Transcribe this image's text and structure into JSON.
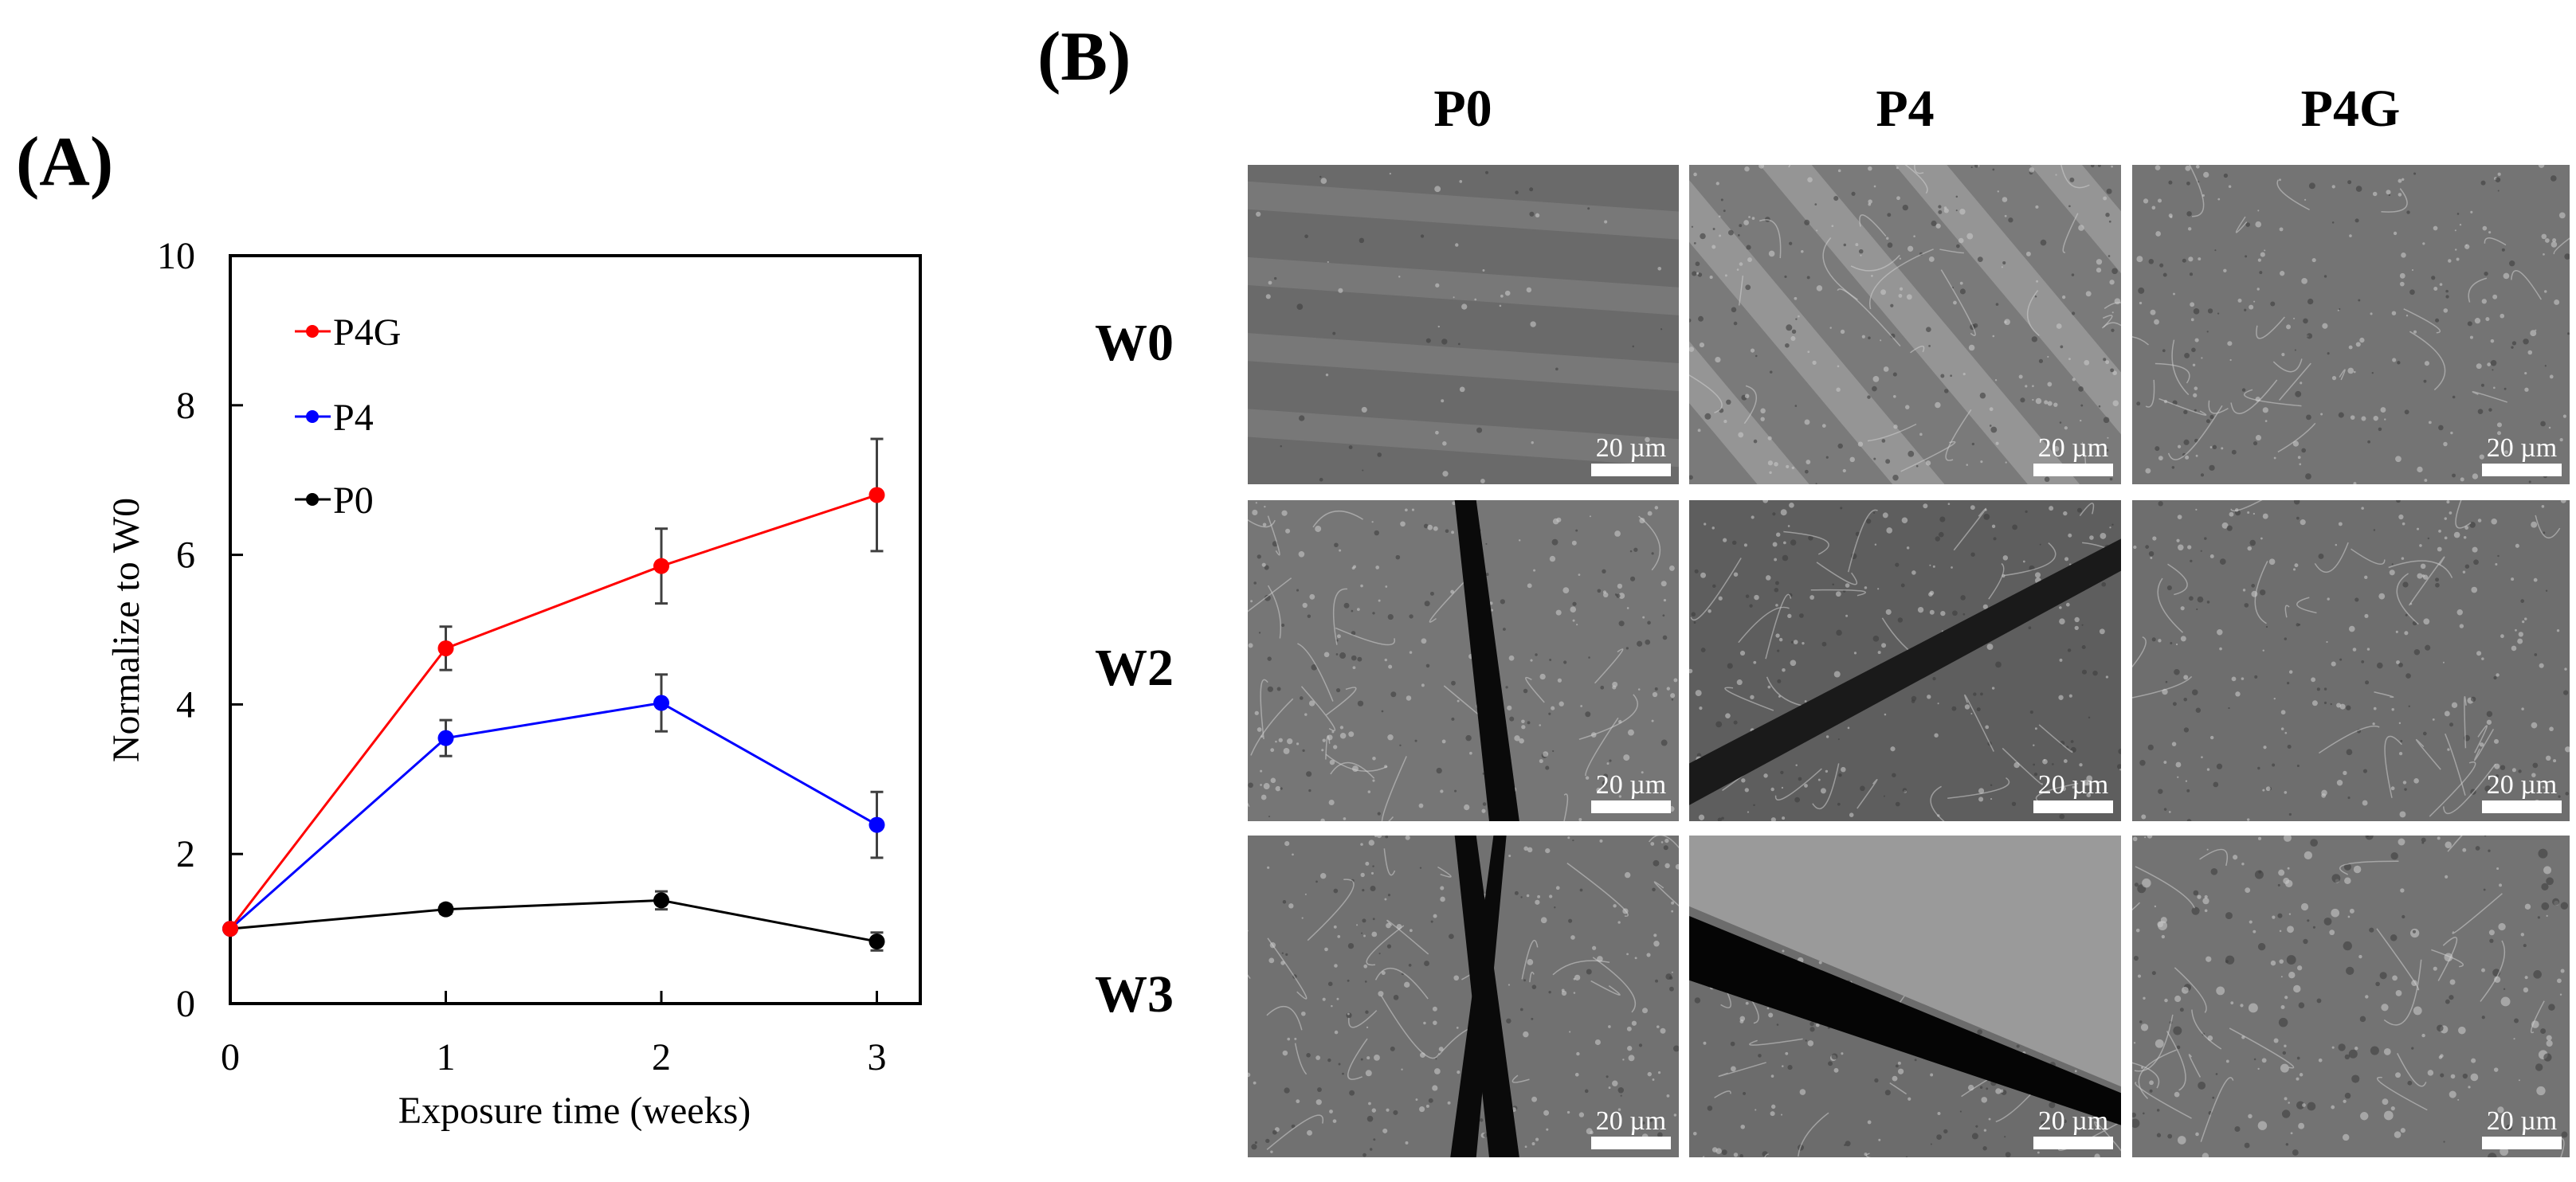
{
  "panel_a": {
    "label": "(A)",
    "y_axis_title": "Normalize to W0",
    "x_axis_title": "Exposure time (weeks)",
    "y_ticks": [
      "0",
      "2",
      "4",
      "6",
      "8",
      "10"
    ],
    "x_ticks": [
      "0",
      "1",
      "2",
      "3"
    ],
    "legend": [
      {
        "name": "P4G",
        "color": "#ff0000"
      },
      {
        "name": "P4",
        "color": "#0000ff"
      },
      {
        "name": "P0",
        "color": "#000000"
      }
    ]
  },
  "panel_b": {
    "label": "(B)",
    "columns": [
      "P0",
      "P4",
      "P4G"
    ],
    "rows": [
      "W0",
      "W2",
      "W3"
    ],
    "scale_bar": "20 µm",
    "tiles": [
      {
        "row": "W0",
        "col": "P0",
        "description": "smooth surface with faint horizontal bands"
      },
      {
        "row": "W0",
        "col": "P4",
        "description": "granular textured surface with diagonal bands"
      },
      {
        "row": "W0",
        "col": "P4G",
        "description": "rough flaky textured surface"
      },
      {
        "row": "W2",
        "col": "P0",
        "description": "wrinkled surface with vertical crack"
      },
      {
        "row": "W2",
        "col": "P4",
        "description": "surface with wide diagonal crack"
      },
      {
        "row": "W2",
        "col": "P4G",
        "description": "scratched layered surface"
      },
      {
        "row": "W3",
        "col": "P0",
        "description": "scratched surface with vertical crack"
      },
      {
        "row": "W3",
        "col": "P4",
        "description": "porous layer edge over dark gap"
      },
      {
        "row": "W3",
        "col": "P4G",
        "description": "surface with scattered particle clusters"
      }
    ]
  },
  "chart_data": {
    "type": "line",
    "title": "",
    "xlabel": "Exposure time (weeks)",
    "ylabel": "Normalize to W0",
    "x": [
      0,
      1,
      2,
      3
    ],
    "xlim": [
      0,
      3.2
    ],
    "ylim": [
      0,
      10
    ],
    "y_ticks": [
      0,
      2,
      4,
      6,
      8,
      10
    ],
    "grid": false,
    "legend_position": "upper left",
    "series": [
      {
        "name": "P4G",
        "color": "#ff0000",
        "values": [
          1.0,
          4.75,
          5.85,
          6.8
        ],
        "errors": [
          0.0,
          0.29,
          0.5,
          0.75
        ]
      },
      {
        "name": "P4",
        "color": "#0000ff",
        "values": [
          1.0,
          3.55,
          4.02,
          2.39
        ],
        "errors": [
          0.0,
          0.24,
          0.38,
          0.44
        ]
      },
      {
        "name": "P0",
        "color": "#000000",
        "values": [
          1.0,
          1.26,
          1.38,
          0.83
        ],
        "errors": [
          0.0,
          0.06,
          0.12,
          0.12
        ]
      }
    ]
  }
}
